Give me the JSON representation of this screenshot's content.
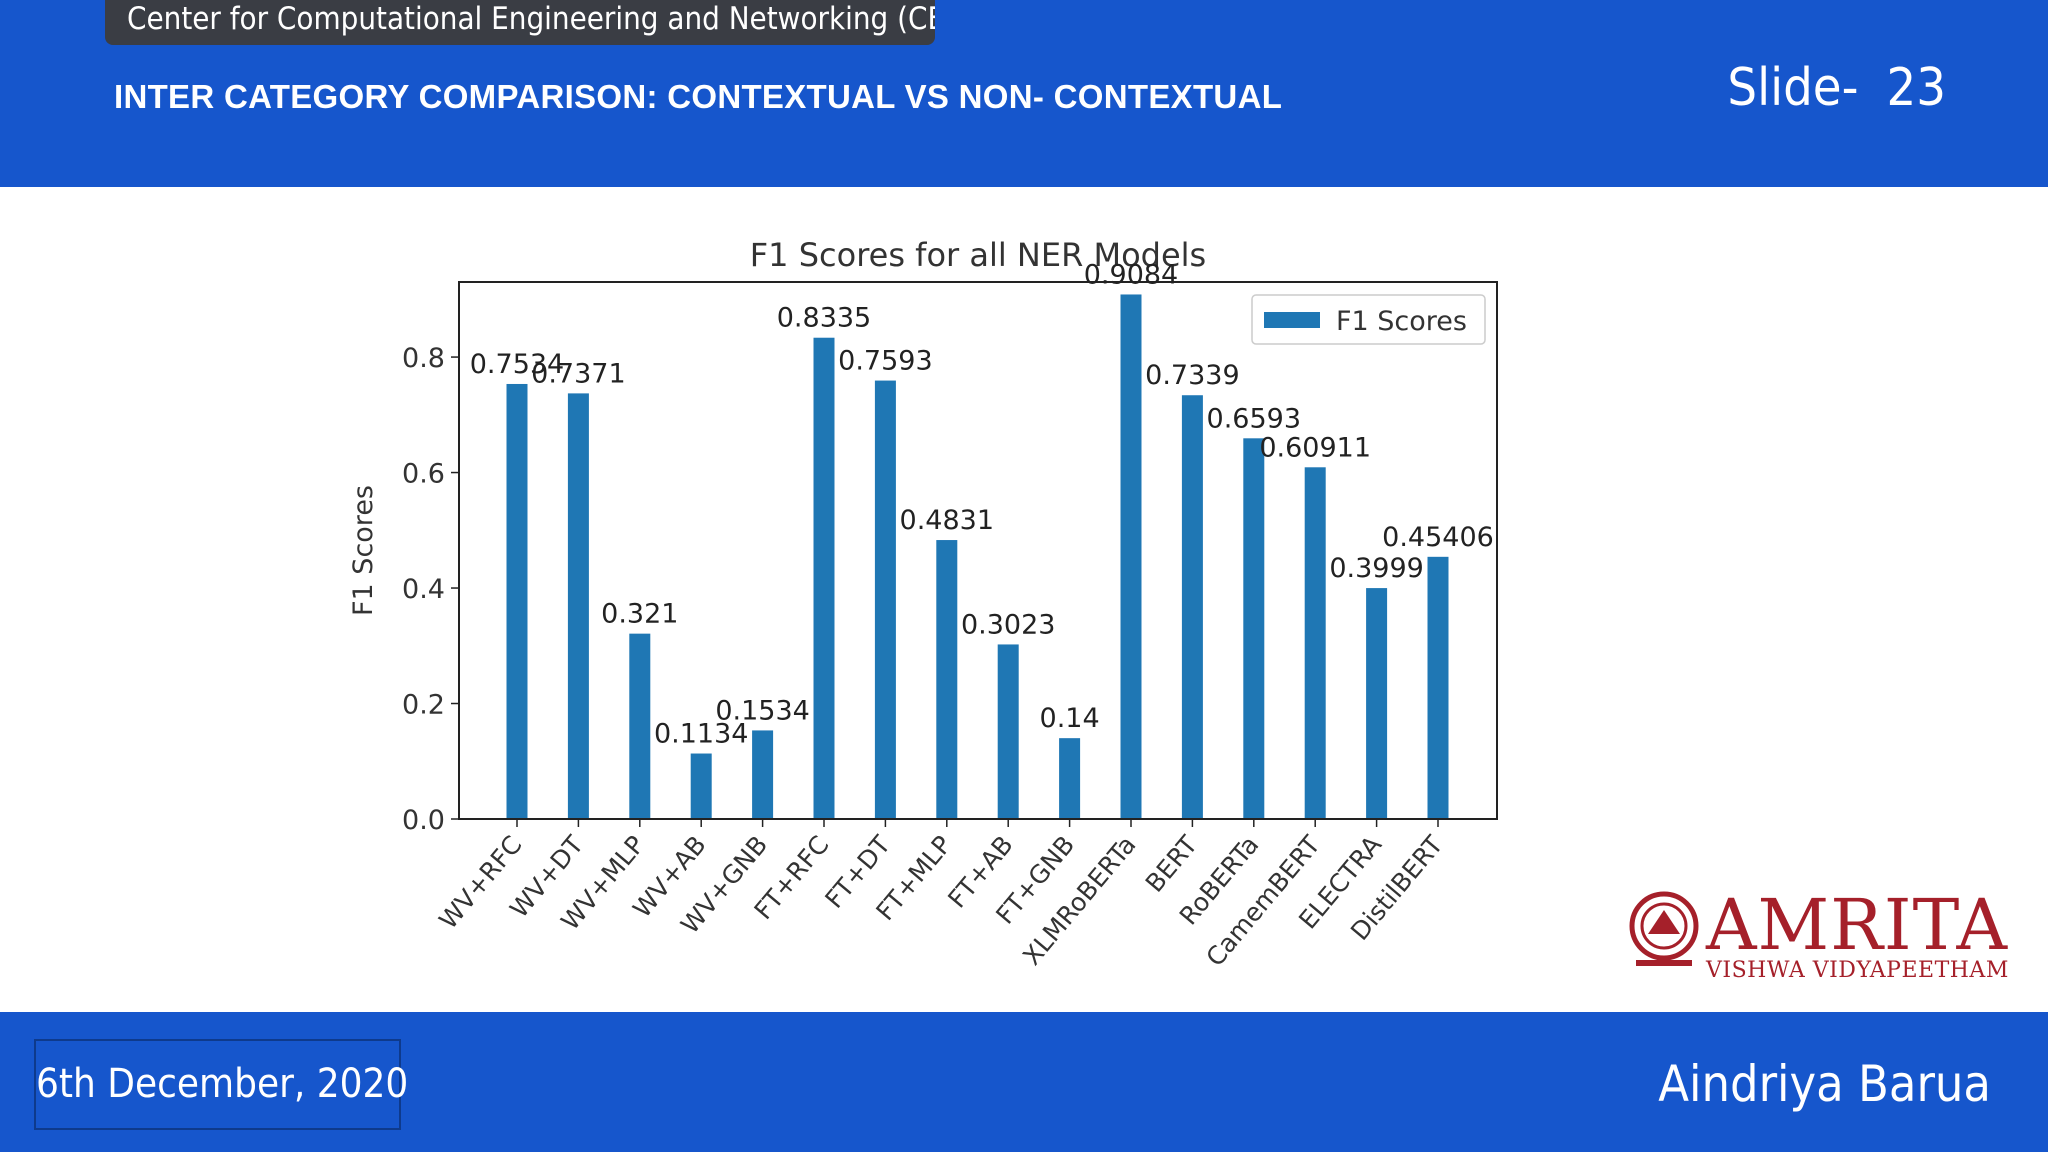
{
  "header": {
    "org": "Center for Computational Engineering and Networking (CEN)",
    "title": "INTER CATEGORY COMPARISON: CONTEXTUAL VS NON- CONTEXTUAL",
    "slide_label": "Slide-",
    "slide_number": "23"
  },
  "footer": {
    "date": "6th December, 2020",
    "author": "Aindriya Barua"
  },
  "logo": {
    "name": "AMRITA",
    "subtitle": "VISHWA VIDYAPEETHAM",
    "color": "#a5202a"
  },
  "colors": {
    "band": "#1656cc",
    "bar": "#1f77b4"
  },
  "chart_data": {
    "type": "bar",
    "title": "F1 Scores for all NER Models",
    "ylabel": "F1 Scores",
    "xlabel": "",
    "ylim": [
      0,
      0.93
    ],
    "yticks": [
      "0.0",
      "0.2",
      "0.4",
      "0.6",
      "0.8"
    ],
    "legend": {
      "label": "F1 Scores",
      "position": "upper right"
    },
    "grid": false,
    "categories": [
      "WV+RFC",
      "WV+DT",
      "WV+MLP",
      "WV+AB",
      "WV+GNB",
      "FT+RFC",
      "FT+DT",
      "FT+MLP",
      "FT+AB",
      "FT+GNB",
      "XLMRoBERTa",
      "BERT",
      "RoBERTa",
      "CamemBERT",
      "ELECTRA",
      "DistilBERT"
    ],
    "series": [
      {
        "name": "F1 Scores",
        "values": [
          0.7534,
          0.7371,
          0.321,
          0.1134,
          0.1534,
          0.8335,
          0.7593,
          0.4831,
          0.3023,
          0.14,
          0.9084,
          0.7339,
          0.6593,
          0.60911,
          0.3999,
          0.45406
        ],
        "labels": [
          "0.7534",
          "0.7371",
          "0.321",
          "0.1134",
          "0.1534",
          "0.8335",
          "0.7593",
          "0.4831",
          "0.3023",
          "0.14",
          "0.9084",
          "0.7339",
          "0.6593",
          "0.60911",
          "0.3999",
          "0.45406"
        ]
      }
    ]
  }
}
